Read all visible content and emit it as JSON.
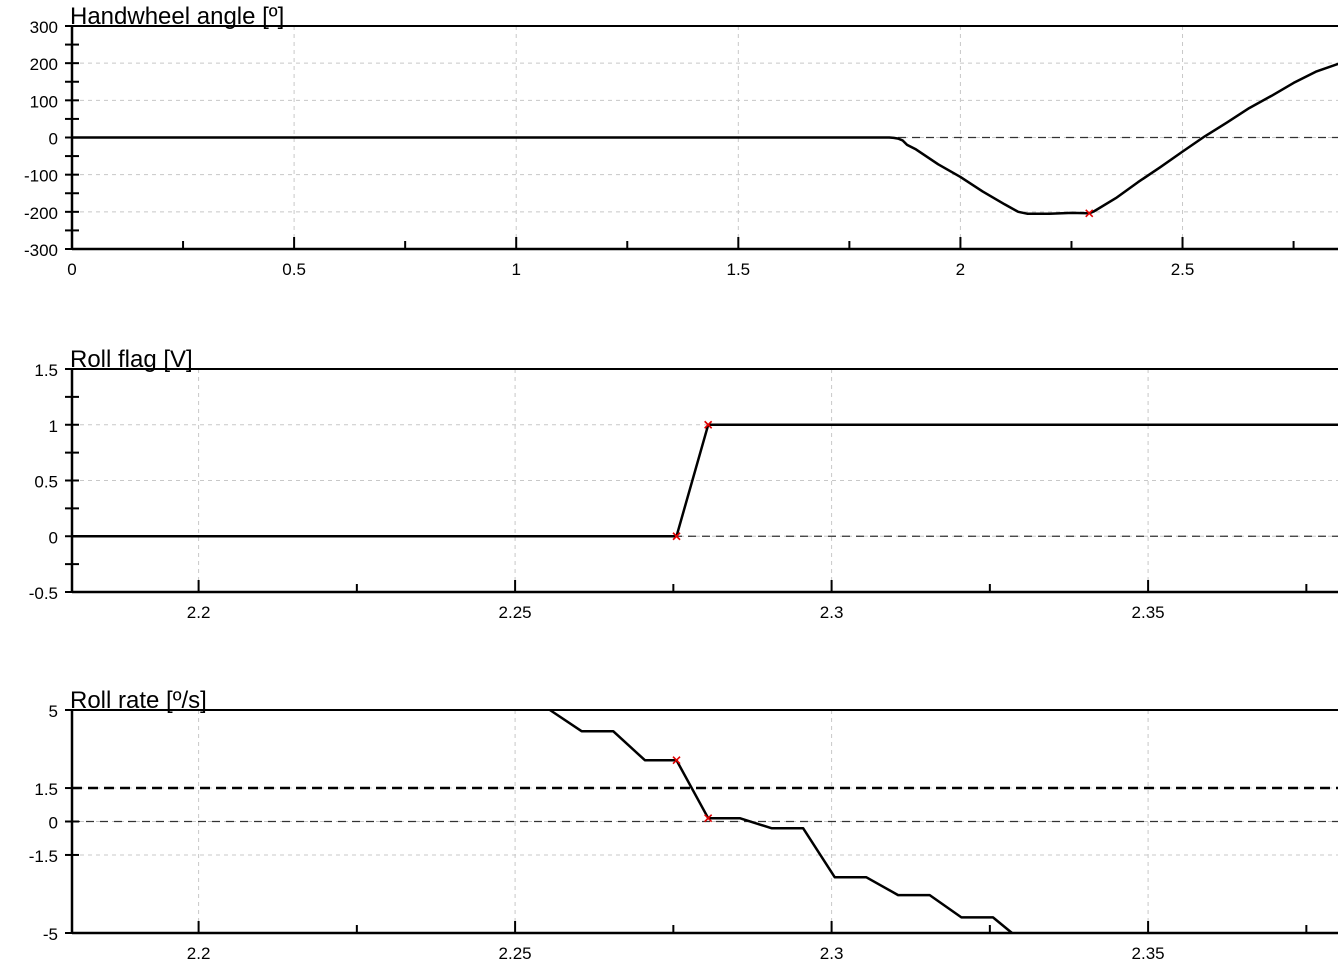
{
  "chart_data": [
    {
      "type": "line",
      "title": "Handwheel angle  [º]",
      "xlim": [
        0,
        2.85
      ],
      "ylim": [
        -300,
        300
      ],
      "x_ticks": [
        0,
        0.5,
        1,
        1.5,
        2,
        2.5
      ],
      "x_tick_labels": [
        "0",
        "0.5",
        "1",
        "1.5",
        "2",
        "2.5"
      ],
      "y_ticks": [
        300,
        200,
        100,
        0,
        -100,
        -200,
        -300
      ],
      "y_tick_labels": [
        "300",
        "200",
        "100",
        "0",
        "-100",
        "-200",
        "-300"
      ],
      "grid": true,
      "reference_lines": [
        {
          "y": 0,
          "style": "dashed"
        }
      ],
      "series": [
        {
          "x": [
            0,
            1.84,
            1.85,
            1.86,
            1.87,
            1.88,
            1.9,
            1.95,
            2.0,
            2.05,
            2.1,
            2.13,
            2.15,
            2.2,
            2.25,
            2.29,
            2.3,
            2.35,
            2.4,
            2.45,
            2.5,
            2.55,
            2.6,
            2.65,
            2.7,
            2.75,
            2.8,
            2.855
          ],
          "y": [
            0,
            0,
            -1,
            -3,
            -8,
            -20,
            -32,
            -72,
            -106,
            -145,
            -180,
            -200,
            -205,
            -205,
            -203,
            -204,
            -199,
            -163,
            -120,
            -80,
            -38,
            3,
            40,
            79,
            112,
            147,
            177,
            200
          ]
        }
      ],
      "markers": [
        {
          "x": 2.29,
          "y": -204
        }
      ]
    },
    {
      "type": "line",
      "title": "Roll flag [V]",
      "xlim": [
        2.18,
        2.38
      ],
      "ylim": [
        -0.5,
        1.5
      ],
      "x_ticks": [
        2.2,
        2.25,
        2.3,
        2.35
      ],
      "x_tick_labels": [
        "2.2",
        "2.25",
        "2.3",
        "2.35"
      ],
      "y_ticks": [
        1.5,
        1,
        0.5,
        0,
        -0.5
      ],
      "y_tick_labels": [
        "1.5",
        "1",
        "0.5",
        "0",
        "-0.5"
      ],
      "grid": true,
      "reference_lines": [
        {
          "y": 0,
          "style": "dashed"
        }
      ],
      "series": [
        {
          "x": [
            2.18,
            2.2755,
            2.2805,
            2.38
          ],
          "y": [
            0,
            0,
            1,
            1
          ]
        }
      ],
      "markers": [
        {
          "x": 2.2755,
          "y": 0
        },
        {
          "x": 2.2805,
          "y": 1
        }
      ]
    },
    {
      "type": "line",
      "title": "Roll rate [º/s]",
      "xlim": [
        2.18,
        2.38
      ],
      "ylim": [
        -5,
        5
      ],
      "x_ticks": [
        2.2,
        2.25,
        2.3,
        2.35
      ],
      "x_tick_labels": [
        "2.2",
        "2.25",
        "2.3",
        "2.35"
      ],
      "y_ticks": [
        5,
        1.5,
        0,
        -1.5,
        -5
      ],
      "y_tick_labels": [
        "5",
        "1.5",
        "0",
        "-1.5",
        "-5"
      ],
      "grid": true,
      "reference_lines": [
        {
          "y": 1.5,
          "style": "dashed-bold"
        },
        {
          "y": 0,
          "style": "dashed"
        }
      ],
      "series": [
        {
          "x": [
            2.2555,
            2.2605,
            2.2655,
            2.2705,
            2.2755,
            2.2805,
            2.2855,
            2.2905,
            2.2955,
            2.3005,
            2.3055,
            2.3105,
            2.3155,
            2.3205,
            2.3255,
            2.3285
          ],
          "y": [
            5,
            4.05,
            4.05,
            2.75,
            2.75,
            0.15,
            0.15,
            -0.3,
            -0.3,
            -2.5,
            -2.5,
            -3.3,
            -3.3,
            -4.3,
            -4.3,
            -5
          ]
        }
      ],
      "markers": [
        {
          "x": 2.2755,
          "y": 2.75
        },
        {
          "x": 2.2805,
          "y": 0.15
        }
      ]
    }
  ]
}
